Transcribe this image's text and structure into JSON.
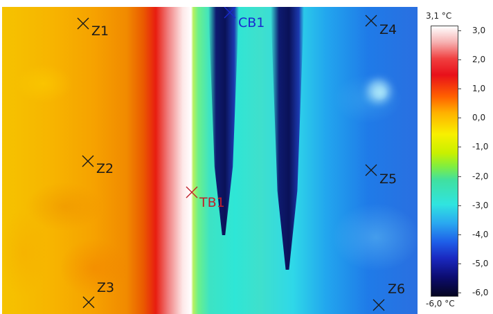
{
  "markers": [
    {
      "id": "z1",
      "label": "Z1",
      "color": "#1a1a1a"
    },
    {
      "id": "z2",
      "label": "Z2",
      "color": "#1a1a1a"
    },
    {
      "id": "z3",
      "label": "Z3",
      "color": "#1a1a1a"
    },
    {
      "id": "z4",
      "label": "Z4",
      "color": "#1a1a1a"
    },
    {
      "id": "z5",
      "label": "Z5",
      "color": "#1a1a1a"
    },
    {
      "id": "z6",
      "label": "Z6",
      "color": "#1a1a1a"
    },
    {
      "id": "tb1",
      "label": "TB1",
      "color": "#c0202a"
    },
    {
      "id": "cb1",
      "label": "CB1",
      "color": "#1a2ad0"
    }
  ],
  "scale": {
    "max_label": "3,1 °C",
    "min_label": "-6,0 °C",
    "ticks": [
      "3,0",
      "2,0",
      "1,0",
      "0,0",
      "-1,0",
      "-2,0",
      "-3,0",
      "-4,0",
      "-5,0",
      "-6,0"
    ]
  }
}
